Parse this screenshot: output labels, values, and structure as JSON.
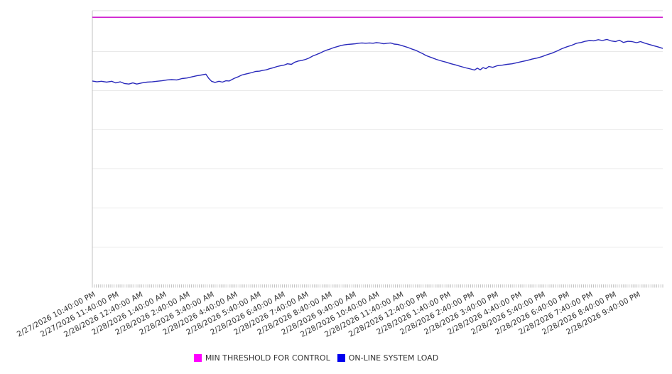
{
  "chart_data": {
    "type": "line",
    "title": "",
    "x_axis": {
      "tick_labels": [
        "2/27/2026 10:40:00 PM",
        "2/27/2026 11:40:00 PM",
        "2/28/2026 12:40:00 AM",
        "2/28/2026 1:40:00 AM",
        "2/28/2026 2:40:00 AM",
        "2/28/2026 3:40:00 AM",
        "2/28/2026 4:40:00 AM",
        "2/28/2026 5:40:00 AM",
        "2/28/2026 6:40:00 AM",
        "2/28/2026 7:40:00 AM",
        "2/28/2026 8:40:00 AM",
        "2/28/2026 9:40:00 AM",
        "2/28/2026 10:40:00 AM",
        "2/28/2026 11:40:00 AM",
        "2/28/2026 12:40:00 PM",
        "2/28/2026 1:40:00 PM",
        "2/28/2026 2:40:00 PM",
        "2/28/2026 3:40:00 PM",
        "2/28/2026 4:40:00 PM",
        "2/28/2026 5:40:00 PM",
        "2/28/2026 6:40:00 PM",
        "2/28/2026 7:40:00 PM",
        "2/28/2026 8:40:00 PM",
        "2/28/2026 9:40:00 PM"
      ],
      "label_rotation_deg": -28,
      "minor_tick_count": 289
    },
    "y_axis": {
      "labels_visible": false,
      "unit": "normalized-0-to-1-of-plot-height",
      "gridline_count": 6
    },
    "legend_position": "bottom",
    "series": [
      {
        "name": "MIN THRESHOLD FOR CONTROL",
        "kind": "constant-line",
        "color": "#cc14cc",
        "swatch_color": "#ff00ff",
        "value": 0.976
      },
      {
        "name": "ON-LINE SYSTEM LOAD",
        "kind": "line",
        "color": "#2929bb",
        "swatch_color": "#0000ee",
        "points": [
          [
            0.0,
            0.743
          ],
          [
            0.008,
            0.74
          ],
          [
            0.016,
            0.742
          ],
          [
            0.025,
            0.739
          ],
          [
            0.034,
            0.742
          ],
          [
            0.041,
            0.736
          ],
          [
            0.049,
            0.74
          ],
          [
            0.056,
            0.734
          ],
          [
            0.064,
            0.732
          ],
          [
            0.071,
            0.736
          ],
          [
            0.078,
            0.732
          ],
          [
            0.087,
            0.736
          ],
          [
            0.096,
            0.739
          ],
          [
            0.105,
            0.74
          ],
          [
            0.113,
            0.742
          ],
          [
            0.122,
            0.744
          ],
          [
            0.131,
            0.747
          ],
          [
            0.139,
            0.748
          ],
          [
            0.148,
            0.747
          ],
          [
            0.157,
            0.752
          ],
          [
            0.166,
            0.754
          ],
          [
            0.174,
            0.758
          ],
          [
            0.183,
            0.762
          ],
          [
            0.191,
            0.765
          ],
          [
            0.199,
            0.768
          ],
          [
            0.204,
            0.753
          ],
          [
            0.209,
            0.742
          ],
          [
            0.215,
            0.738
          ],
          [
            0.222,
            0.742
          ],
          [
            0.228,
            0.739
          ],
          [
            0.234,
            0.744
          ],
          [
            0.24,
            0.743
          ],
          [
            0.249,
            0.753
          ],
          [
            0.255,
            0.758
          ],
          [
            0.262,
            0.765
          ],
          [
            0.268,
            0.768
          ],
          [
            0.274,
            0.771
          ],
          [
            0.28,
            0.774
          ],
          [
            0.286,
            0.778
          ],
          [
            0.293,
            0.779
          ],
          [
            0.299,
            0.782
          ],
          [
            0.305,
            0.784
          ],
          [
            0.311,
            0.788
          ],
          [
            0.318,
            0.792
          ],
          [
            0.324,
            0.796
          ],
          [
            0.33,
            0.799
          ],
          [
            0.336,
            0.801
          ],
          [
            0.342,
            0.806
          ],
          [
            0.349,
            0.804
          ],
          [
            0.355,
            0.812
          ],
          [
            0.361,
            0.816
          ],
          [
            0.367,
            0.818
          ],
          [
            0.374,
            0.822
          ],
          [
            0.38,
            0.827
          ],
          [
            0.386,
            0.834
          ],
          [
            0.392,
            0.839
          ],
          [
            0.399,
            0.845
          ],
          [
            0.405,
            0.851
          ],
          [
            0.411,
            0.856
          ],
          [
            0.417,
            0.86
          ],
          [
            0.423,
            0.865
          ],
          [
            0.43,
            0.869
          ],
          [
            0.436,
            0.873
          ],
          [
            0.442,
            0.875
          ],
          [
            0.448,
            0.877
          ],
          [
            0.455,
            0.878
          ],
          [
            0.461,
            0.879
          ],
          [
            0.467,
            0.881
          ],
          [
            0.473,
            0.882
          ],
          [
            0.479,
            0.881
          ],
          [
            0.486,
            0.882
          ],
          [
            0.492,
            0.881
          ],
          [
            0.498,
            0.883
          ],
          [
            0.504,
            0.882
          ],
          [
            0.511,
            0.879
          ],
          [
            0.517,
            0.881
          ],
          [
            0.523,
            0.882
          ],
          [
            0.529,
            0.878
          ],
          [
            0.535,
            0.877
          ],
          [
            0.542,
            0.873
          ],
          [
            0.548,
            0.869
          ],
          [
            0.554,
            0.865
          ],
          [
            0.56,
            0.86
          ],
          [
            0.567,
            0.855
          ],
          [
            0.573,
            0.849
          ],
          [
            0.579,
            0.843
          ],
          [
            0.585,
            0.836
          ],
          [
            0.594,
            0.829
          ],
          [
            0.603,
            0.822
          ],
          [
            0.611,
            0.817
          ],
          [
            0.62,
            0.812
          ],
          [
            0.629,
            0.806
          ],
          [
            0.638,
            0.801
          ],
          [
            0.646,
            0.796
          ],
          [
            0.655,
            0.791
          ],
          [
            0.663,
            0.787
          ],
          [
            0.67,
            0.783
          ],
          [
            0.675,
            0.79
          ],
          [
            0.68,
            0.784
          ],
          [
            0.685,
            0.792
          ],
          [
            0.69,
            0.788
          ],
          [
            0.695,
            0.796
          ],
          [
            0.702,
            0.793
          ],
          [
            0.71,
            0.799
          ],
          [
            0.719,
            0.801
          ],
          [
            0.727,
            0.804
          ],
          [
            0.736,
            0.806
          ],
          [
            0.745,
            0.81
          ],
          [
            0.753,
            0.814
          ],
          [
            0.762,
            0.818
          ],
          [
            0.771,
            0.823
          ],
          [
            0.78,
            0.827
          ],
          [
            0.788,
            0.832
          ],
          [
            0.797,
            0.839
          ],
          [
            0.806,
            0.845
          ],
          [
            0.815,
            0.853
          ],
          [
            0.823,
            0.861
          ],
          [
            0.832,
            0.868
          ],
          [
            0.841,
            0.874
          ],
          [
            0.849,
            0.881
          ],
          [
            0.857,
            0.884
          ],
          [
            0.864,
            0.888
          ],
          [
            0.872,
            0.891
          ],
          [
            0.879,
            0.89
          ],
          [
            0.887,
            0.894
          ],
          [
            0.894,
            0.891
          ],
          [
            0.902,
            0.895
          ],
          [
            0.909,
            0.89
          ],
          [
            0.917,
            0.887
          ],
          [
            0.924,
            0.892
          ],
          [
            0.931,
            0.884
          ],
          [
            0.939,
            0.888
          ],
          [
            0.946,
            0.887
          ],
          [
            0.954,
            0.883
          ],
          [
            0.961,
            0.887
          ],
          [
            0.969,
            0.881
          ],
          [
            0.976,
            0.877
          ],
          [
            0.984,
            0.872
          ],
          [
            0.991,
            0.868
          ],
          [
            1.0,
            0.862
          ]
        ]
      }
    ]
  },
  "colors": {
    "background": "#ffffff",
    "gridline": "#e9e9e9",
    "top_border": "#d9d9d9",
    "axis_line": "#c0c0c0",
    "tick": "#aaaaaa",
    "label_text": "#333333"
  }
}
